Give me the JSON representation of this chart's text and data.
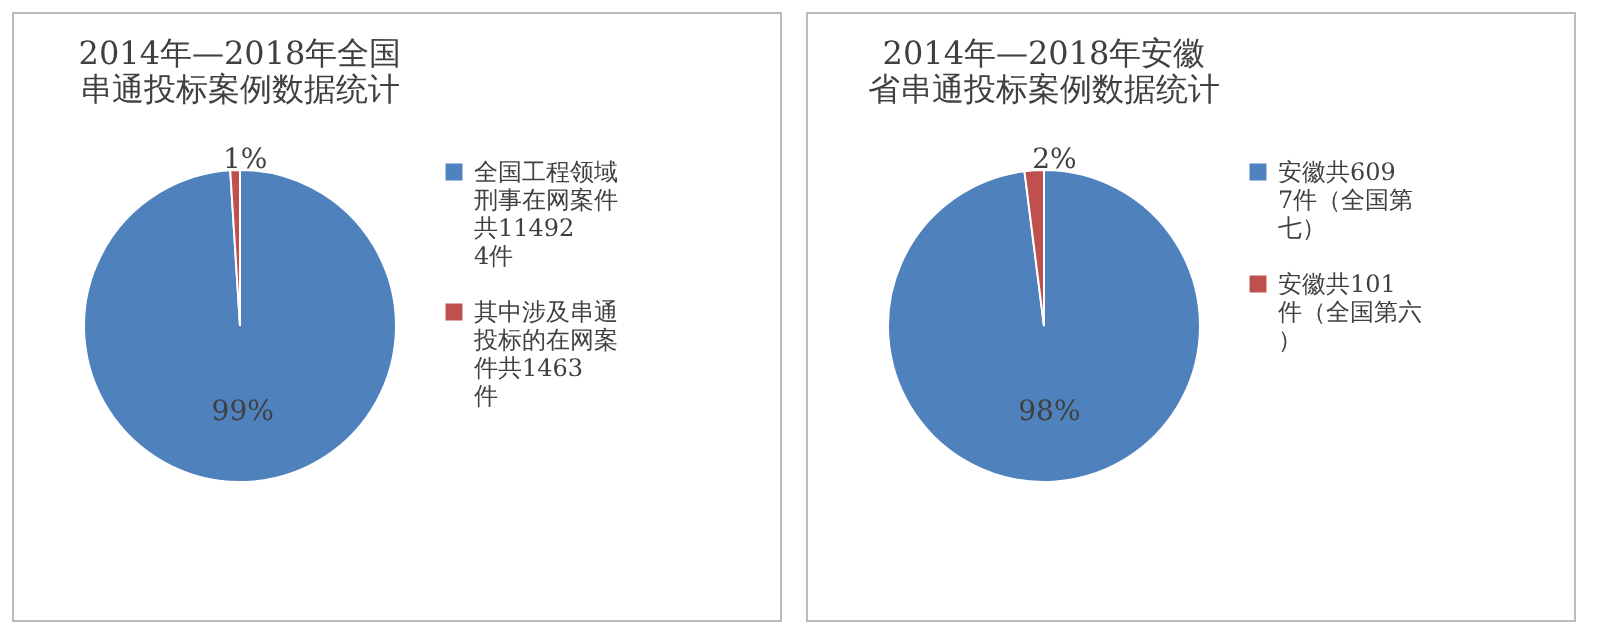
{
  "chart_data": [
    {
      "type": "pie",
      "title": "2014年—2018年全国串通投标案例数据统计",
      "categories": [
        "全国工程领域刑事在网案件共114924件",
        "其中涉及串通投标的在网案件共1463件"
      ],
      "values": [
        99,
        1
      ],
      "colors": [
        "#4f81bd",
        "#c0504d"
      ],
      "value_labels": [
        "99%",
        "1%"
      ],
      "legend": "right"
    },
    {
      "type": "pie",
      "title": "2014年—2018年安徽省串通投标案例数据统计",
      "categories": [
        "安徽共6097件（全国第七）",
        "安徽共101件（全国第六）"
      ],
      "values": [
        98,
        2
      ],
      "colors": [
        "#4f81bd",
        "#c0504d"
      ],
      "value_labels": [
        "98%",
        "2%"
      ],
      "legend": "right"
    }
  ]
}
